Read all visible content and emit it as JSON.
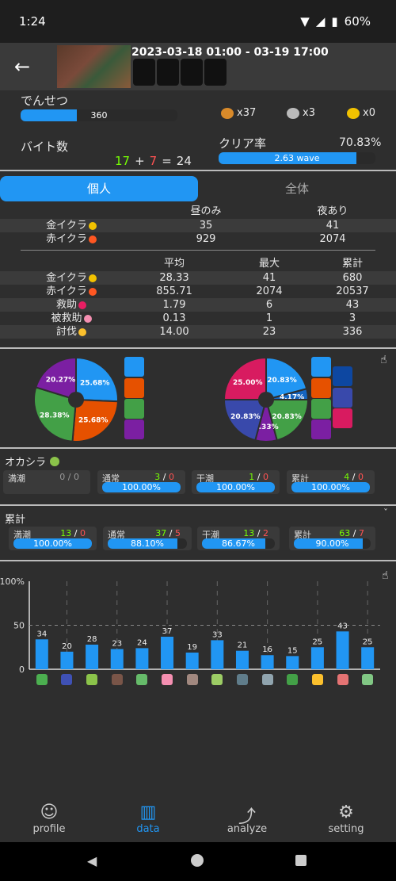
{
  "status": {
    "time": "1:24",
    "battery": "60%"
  },
  "header": {
    "schedule": "2023-03-18 01:00 - 03-19 17:00"
  },
  "legend": {
    "label": "でんせつ",
    "value": "360",
    "fill": 0.36
  },
  "eggs": {
    "big_gold": "x37",
    "silver": "x3",
    "gold": "x0"
  },
  "bait": {
    "label": "バイト数",
    "clear": "17",
    "sep1": "+",
    "fail": "7",
    "sep2": "=",
    "total": "24"
  },
  "clearrate": {
    "label": "クリア率",
    "value": "70.83%",
    "bar_label": "2.63 wave",
    "fill": 0.877
  },
  "tabs": {
    "personal": "個人",
    "all": "全体"
  },
  "table1": {
    "headers": [
      "昼のみ",
      "夜あり"
    ],
    "rows": [
      {
        "label": "金イクラ",
        "v": [
          "35",
          "41"
        ]
      },
      {
        "label": "赤イクラ",
        "v": [
          "929",
          "2074"
        ]
      }
    ]
  },
  "table2": {
    "headers": [
      "平均",
      "最大",
      "累計"
    ],
    "rows": [
      {
        "label": "金イクラ",
        "v": [
          "28.33",
          "41",
          "680"
        ]
      },
      {
        "label": "赤イクラ",
        "v": [
          "855.71",
          "2074",
          "20537"
        ]
      },
      {
        "label": "救助",
        "v": [
          "1.79",
          "6",
          "43"
        ]
      },
      {
        "label": "被救助",
        "v": [
          "0.13",
          "1",
          "3"
        ]
      },
      {
        "label": "討伐",
        "v": [
          "14.00",
          "23",
          "336"
        ]
      }
    ]
  },
  "chart_data": [
    {
      "type": "pie",
      "values": [
        25.68,
        25.68,
        28.38,
        20.27
      ],
      "labels": [
        "25.68%",
        "25.68%",
        "28.38%",
        "20.27%"
      ],
      "colors": [
        "#2196f3",
        "#e65100",
        "#43a047",
        "#7b1fa2"
      ]
    },
    {
      "type": "pie",
      "values": [
        20.83,
        4.17,
        20.83,
        8.33,
        20.83,
        25.0
      ],
      "labels": [
        "20.83%",
        "4.17%",
        "20.83%",
        "8.33%",
        "20.83%",
        "25.00%"
      ],
      "colors": [
        "#2196f3",
        "#1565c0",
        "#43a047",
        "#7b1fa2",
        "#3949ab",
        "#d81b60"
      ]
    },
    {
      "type": "bar",
      "values": [
        34,
        20,
        28,
        23,
        24,
        37,
        19,
        33,
        21,
        16,
        15,
        25,
        43,
        25
      ],
      "ylim": [
        0,
        100
      ],
      "yticks": [
        "0",
        "50",
        "100%"
      ]
    }
  ],
  "okashira": {
    "title": "オカシラ",
    "cards": [
      {
        "label": "満潮",
        "a": "0",
        "b": "0",
        "sep": "/",
        "pct": "",
        "fill": 0,
        "empty": true
      },
      {
        "label": "通常",
        "a": "3",
        "b": "0",
        "sep": "/",
        "pct": "100.00%",
        "fill": 1
      },
      {
        "label": "干潮",
        "a": "1",
        "b": "0",
        "sep": "/",
        "pct": "100.00%",
        "fill": 1
      },
      {
        "label": "累計",
        "a": "4",
        "b": "0",
        "sep": "/",
        "pct": "100.00%",
        "fill": 1
      }
    ]
  },
  "ruikei": {
    "title": "累計",
    "cards": [
      {
        "label": "満潮",
        "a": "13",
        "b": "0",
        "sep": "/",
        "pct": "100.00%",
        "fill": 1
      },
      {
        "label": "通常",
        "a": "37",
        "b": "5",
        "sep": "/",
        "pct": "88.10%",
        "fill": 0.881
      },
      {
        "label": "干潮",
        "a": "13",
        "b": "2",
        "sep": "/",
        "pct": "86.67%",
        "fill": 0.8667
      },
      {
        "label": "累計",
        "a": "63",
        "b": "7",
        "sep": "/",
        "pct": "90.00%",
        "fill": 0.9
      }
    ]
  },
  "nav": {
    "profile": "profile",
    "data": "data",
    "analyze": "analyze",
    "setting": "setting"
  }
}
